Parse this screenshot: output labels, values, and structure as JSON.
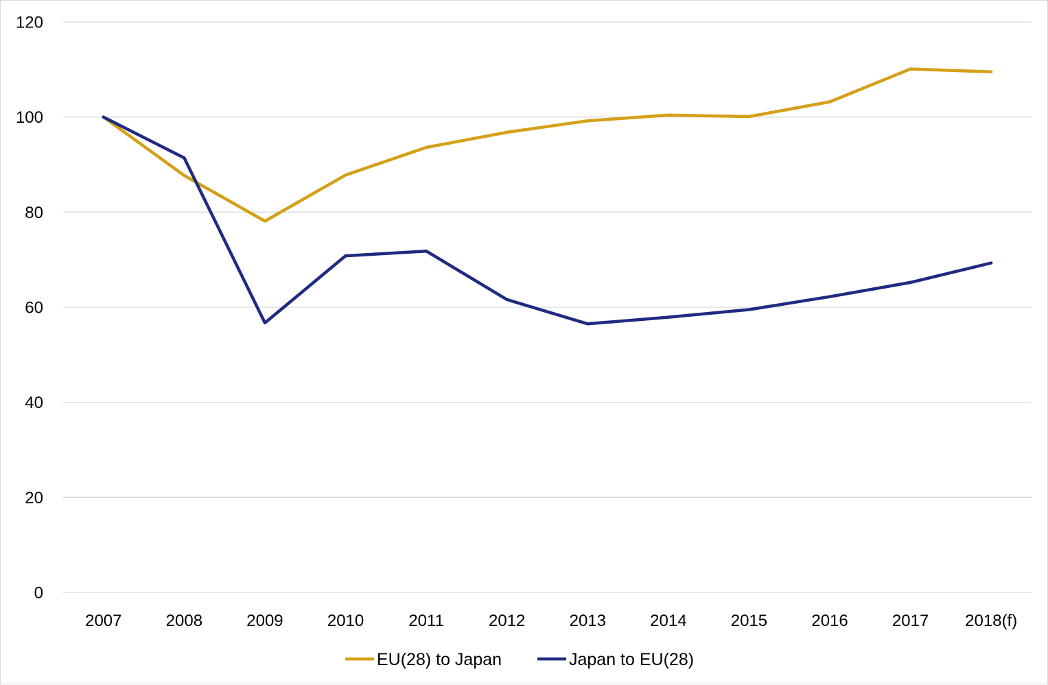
{
  "chart_data": {
    "type": "line",
    "title": "",
    "xlabel": "",
    "ylabel": "",
    "categories": [
      "2007",
      "2008",
      "2009",
      "2010",
      "2011",
      "2012",
      "2013",
      "2014",
      "2015",
      "2016",
      "2017",
      "2018(f)"
    ],
    "ylim": [
      0,
      120
    ],
    "yticks": [
      0,
      20,
      40,
      60,
      80,
      100,
      120
    ],
    "grid": true,
    "legend_position": "bottom",
    "series": [
      {
        "name": "EU(28) to Japan",
        "color": "#D4A017",
        "values": [
          100,
          87.7,
          78.1,
          87.8,
          93.6,
          96.8,
          99.2,
          100.4,
          100.1,
          103.2,
          110.1,
          109.5
        ]
      },
      {
        "name": "Japan to EU(28)",
        "color": "#1F2A80",
        "values": [
          100,
          91.4,
          56.7,
          70.8,
          71.8,
          61.6,
          56.5,
          57.9,
          59.5,
          62.2,
          65.2,
          69.3
        ]
      }
    ]
  }
}
